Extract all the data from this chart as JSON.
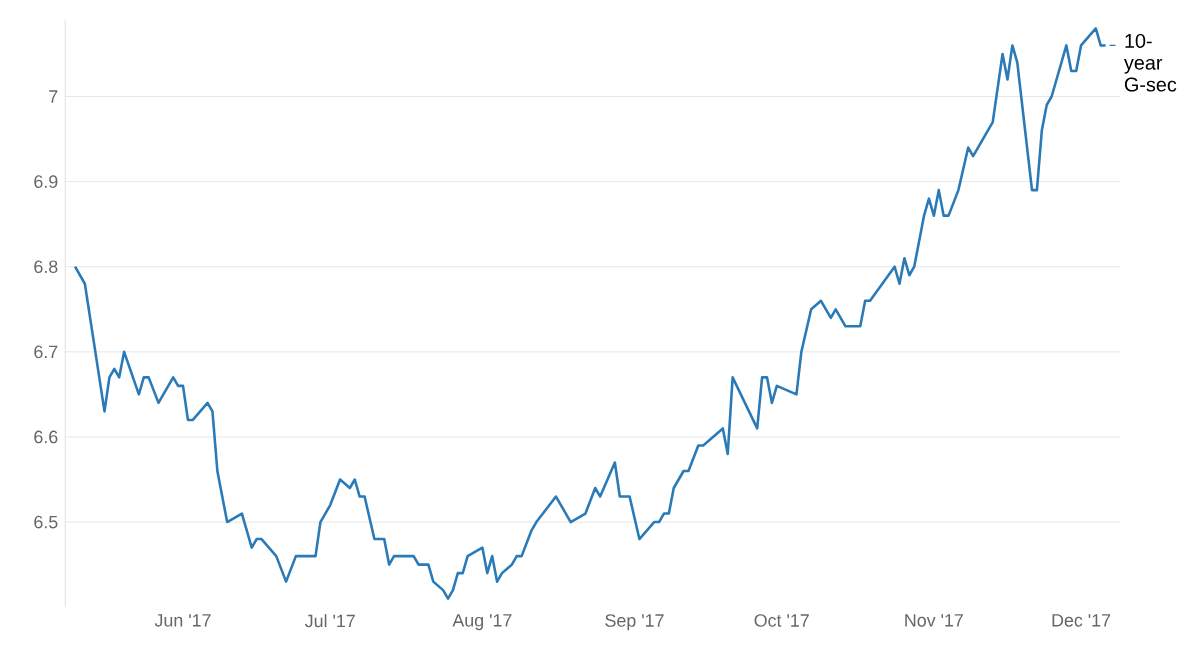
{
  "chart_data": {
    "type": "line",
    "grid": "y",
    "xlim": [
      "2017-05-08",
      "2017-12-09"
    ],
    "ylim": [
      6.4,
      7.09
    ],
    "xticks": [
      {
        "value": "2017-06-01",
        "label": "Jun '17"
      },
      {
        "value": "2017-07-01",
        "label": "Jul '17"
      },
      {
        "value": "2017-08-01",
        "label": "Aug '17"
      },
      {
        "value": "2017-09-01",
        "label": "Sep '17"
      },
      {
        "value": "2017-10-01",
        "label": "Oct '17"
      },
      {
        "value": "2017-11-01",
        "label": "Nov '17"
      },
      {
        "value": "2017-12-01",
        "label": "Dec '17"
      }
    ],
    "yticks": [
      6.5,
      6.6,
      6.7,
      6.8,
      6.9,
      7
    ],
    "series": [
      {
        "name": "10-year G-sec",
        "color": "#2a7ab8",
        "x": [
          "2017-05-10",
          "2017-05-12",
          "2017-05-16",
          "2017-05-17",
          "2017-05-18",
          "2017-05-19",
          "2017-05-20",
          "2017-05-23",
          "2017-05-24",
          "2017-05-25",
          "2017-05-27",
          "2017-05-30",
          "2017-05-31",
          "2017-06-01",
          "2017-06-02",
          "2017-06-03",
          "2017-06-06",
          "2017-06-07",
          "2017-06-08",
          "2017-06-10",
          "2017-06-13",
          "2017-06-15",
          "2017-06-16",
          "2017-06-17",
          "2017-06-20",
          "2017-06-22",
          "2017-06-24",
          "2017-06-28",
          "2017-06-29",
          "2017-06-30",
          "2017-07-01",
          "2017-07-03",
          "2017-07-05",
          "2017-07-06",
          "2017-07-07",
          "2017-07-08",
          "2017-07-10",
          "2017-07-12",
          "2017-07-13",
          "2017-07-14",
          "2017-07-18",
          "2017-07-19",
          "2017-07-21",
          "2017-07-22",
          "2017-07-24",
          "2017-07-25",
          "2017-07-26",
          "2017-07-27",
          "2017-07-28",
          "2017-07-29",
          "2017-08-01",
          "2017-08-02",
          "2017-08-03",
          "2017-08-04",
          "2017-08-05",
          "2017-08-07",
          "2017-08-08",
          "2017-08-09",
          "2017-08-11",
          "2017-08-12",
          "2017-08-16",
          "2017-08-19",
          "2017-08-22",
          "2017-08-24",
          "2017-08-25",
          "2017-08-28",
          "2017-08-29",
          "2017-08-31",
          "2017-09-02",
          "2017-09-05",
          "2017-09-06",
          "2017-09-07",
          "2017-09-08",
          "2017-09-09",
          "2017-09-11",
          "2017-09-12",
          "2017-09-14",
          "2017-09-15",
          "2017-09-19",
          "2017-09-20",
          "2017-09-21",
          "2017-09-26",
          "2017-09-27",
          "2017-09-28",
          "2017-09-29",
          "2017-09-30",
          "2017-10-04",
          "2017-10-05",
          "2017-10-07",
          "2017-10-09",
          "2017-10-11",
          "2017-10-12",
          "2017-10-14",
          "2017-10-17",
          "2017-10-18",
          "2017-10-19",
          "2017-10-24",
          "2017-10-25",
          "2017-10-26",
          "2017-10-27",
          "2017-10-28",
          "2017-10-30",
          "2017-10-31",
          "2017-11-01",
          "2017-11-02",
          "2017-11-03",
          "2017-11-04",
          "2017-11-06",
          "2017-11-08",
          "2017-11-09",
          "2017-11-11",
          "2017-11-13",
          "2017-11-15",
          "2017-11-16",
          "2017-11-17",
          "2017-11-18",
          "2017-11-21",
          "2017-11-22",
          "2017-11-23",
          "2017-11-24",
          "2017-11-25",
          "2017-11-28",
          "2017-11-29",
          "2017-11-30",
          "2017-12-01",
          "2017-12-04",
          "2017-12-05",
          "2017-12-06"
        ],
        "values": [
          6.8,
          6.78,
          6.63,
          6.67,
          6.68,
          6.67,
          6.7,
          6.65,
          6.67,
          6.67,
          6.64,
          6.67,
          6.66,
          6.66,
          6.62,
          6.62,
          6.64,
          6.63,
          6.56,
          6.5,
          6.51,
          6.47,
          6.48,
          6.48,
          6.46,
          6.43,
          6.46,
          6.46,
          6.5,
          6.51,
          6.52,
          6.55,
          6.54,
          6.55,
          6.53,
          6.53,
          6.48,
          6.48,
          6.45,
          6.46,
          6.46,
          6.45,
          6.45,
          6.43,
          6.42,
          6.41,
          6.42,
          6.44,
          6.44,
          6.46,
          6.47,
          6.44,
          6.46,
          6.43,
          6.44,
          6.45,
          6.46,
          6.46,
          6.49,
          6.5,
          6.53,
          6.5,
          6.51,
          6.54,
          6.53,
          6.57,
          6.53,
          6.53,
          6.48,
          6.5,
          6.5,
          6.51,
          6.51,
          6.54,
          6.56,
          6.56,
          6.59,
          6.59,
          6.61,
          6.58,
          6.67,
          6.61,
          6.67,
          6.67,
          6.64,
          6.66,
          6.65,
          6.7,
          6.75,
          6.76,
          6.74,
          6.75,
          6.73,
          6.73,
          6.76,
          6.76,
          6.8,
          6.78,
          6.81,
          6.79,
          6.8,
          6.86,
          6.88,
          6.86,
          6.89,
          6.86,
          6.86,
          6.89,
          6.94,
          6.93,
          6.95,
          6.97,
          7.05,
          7.02,
          7.06,
          7.04,
          6.89,
          6.89,
          6.96,
          6.99,
          7.0,
          7.06,
          7.03,
          7.03,
          7.06,
          7.08,
          7.06,
          7.06
        ]
      }
    ]
  }
}
